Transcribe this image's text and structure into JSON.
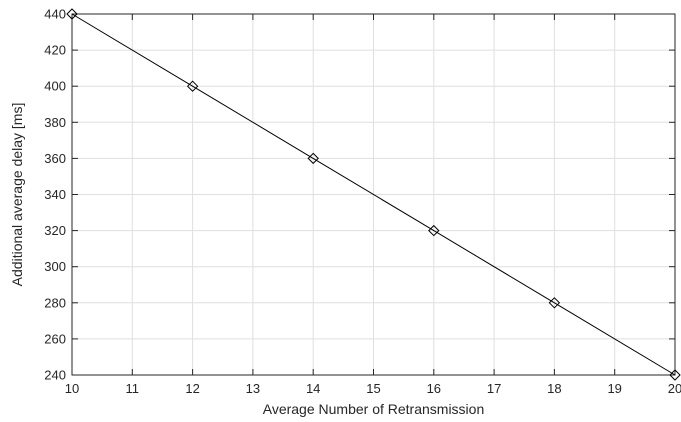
{
  "chart_data": {
    "type": "line",
    "title": "",
    "xlabel": "Average Number of Retransmission",
    "ylabel": "Additional average delay [ms]",
    "xlim": [
      10,
      20
    ],
    "ylim": [
      240,
      440
    ],
    "xticks": [
      "10",
      "11",
      "12",
      "13",
      "14",
      "15",
      "16",
      "17",
      "18",
      "19",
      "20"
    ],
    "yticks": [
      "240",
      "260",
      "280",
      "300",
      "320",
      "340",
      "360",
      "380",
      "400",
      "420",
      "440"
    ],
    "grid": true,
    "series": [
      {
        "marker": "diamond",
        "color": "#000000",
        "x": [
          10,
          12,
          14,
          16,
          18,
          20
        ],
        "y": [
          440,
          400,
          360,
          320,
          280,
          240
        ]
      }
    ]
  }
}
